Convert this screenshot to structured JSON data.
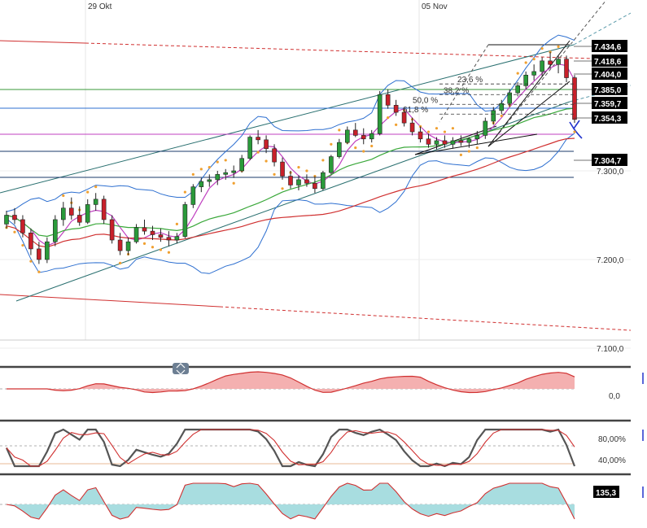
{
  "chart_data": {
    "type": "candlestick",
    "x_labels": [
      "29 Okt",
      "05 Nov"
    ],
    "price_axis": {
      "ticks": [
        "7.300,0",
        "7.200,0",
        "7.100,0"
      ],
      "range": [
        7085,
        7470
      ]
    },
    "price_tags": [
      {
        "label": "7.434,6",
        "value": 7434.6,
        "style": "black"
      },
      {
        "label": "7.418,6",
        "value": 7418.6,
        "style": "black"
      },
      {
        "label": "7.404,0",
        "value": 7404.0,
        "style": "black"
      },
      {
        "label": "7.385,0",
        "value": 7385.0,
        "style": "black"
      },
      {
        "label": "7.359,7",
        "value": 7359.7,
        "style": "black"
      },
      {
        "label": "7.354,3",
        "value": 7354.3,
        "style": "black"
      },
      {
        "label": "7.304,7",
        "value": 7304.7,
        "style": "black"
      }
    ],
    "fibonacci_levels": [
      {
        "label": "23,6 %",
        "value": 7398
      },
      {
        "label": "38,2 %",
        "value": 7386
      },
      {
        "label": "50,0 %",
        "value": 7375
      },
      {
        "label": "61,8 %",
        "value": 7364
      }
    ],
    "candles_approx": [
      [
        7240,
        7255,
        7235,
        7250
      ],
      [
        7250,
        7258,
        7240,
        7245
      ],
      [
        7245,
        7250,
        7225,
        7230
      ],
      [
        7230,
        7235,
        7205,
        7212
      ],
      [
        7212,
        7220,
        7195,
        7200
      ],
      [
        7200,
        7225,
        7196,
        7220
      ],
      [
        7220,
        7250,
        7215,
        7245
      ],
      [
        7245,
        7265,
        7238,
        7258
      ],
      [
        7258,
        7270,
        7245,
        7250
      ],
      [
        7250,
        7260,
        7238,
        7242
      ],
      [
        7242,
        7268,
        7240,
        7262
      ],
      [
        7262,
        7275,
        7255,
        7268
      ],
      [
        7268,
        7272,
        7240,
        7245
      ],
      [
        7245,
        7250,
        7218,
        7222
      ],
      [
        7222,
        7230,
        7205,
        7210
      ],
      [
        7210,
        7225,
        7205,
        7220
      ],
      [
        7220,
        7240,
        7218,
        7236
      ],
      [
        7236,
        7245,
        7228,
        7232
      ],
      [
        7232,
        7238,
        7222,
        7228
      ],
      [
        7228,
        7235,
        7220,
        7225
      ],
      [
        7225,
        7232,
        7215,
        7222
      ],
      [
        7222,
        7230,
        7218,
        7226
      ],
      [
        7226,
        7265,
        7224,
        7262
      ],
      [
        7262,
        7285,
        7258,
        7282
      ],
      [
        7282,
        7292,
        7276,
        7288
      ],
      [
        7288,
        7296,
        7282,
        7290
      ],
      [
        7290,
        7300,
        7284,
        7296
      ],
      [
        7296,
        7302,
        7290,
        7298
      ],
      [
        7298,
        7306,
        7292,
        7300
      ],
      [
        7300,
        7318,
        7298,
        7314
      ],
      [
        7314,
        7340,
        7312,
        7338
      ],
      [
        7338,
        7346,
        7330,
        7335
      ],
      [
        7335,
        7340,
        7320,
        7325
      ],
      [
        7325,
        7330,
        7305,
        7310
      ],
      [
        7310,
        7315,
        7290,
        7294
      ],
      [
        7294,
        7300,
        7280,
        7284
      ],
      [
        7284,
        7295,
        7278,
        7290
      ],
      [
        7290,
        7296,
        7282,
        7286
      ],
      [
        7286,
        7294,
        7275,
        7280
      ],
      [
        7280,
        7300,
        7278,
        7298
      ],
      [
        7298,
        7318,
        7296,
        7316
      ],
      [
        7316,
        7336,
        7314,
        7332
      ],
      [
        7332,
        7350,
        7330,
        7346
      ],
      [
        7346,
        7354,
        7338,
        7340
      ],
      [
        7340,
        7348,
        7330,
        7336
      ],
      [
        7336,
        7346,
        7332,
        7342
      ],
      [
        7342,
        7390,
        7340,
        7386
      ],
      [
        7386,
        7392,
        7370,
        7374
      ],
      [
        7374,
        7380,
        7362,
        7366
      ],
      [
        7366,
        7372,
        7350,
        7354
      ],
      [
        7354,
        7360,
        7340,
        7344
      ],
      [
        7344,
        7350,
        7332,
        7336
      ],
      [
        7336,
        7342,
        7326,
        7330
      ],
      [
        7330,
        7338,
        7324,
        7334
      ],
      [
        7334,
        7340,
        7326,
        7330
      ],
      [
        7330,
        7338,
        7325,
        7334
      ],
      [
        7334,
        7340,
        7328,
        7332
      ],
      [
        7332,
        7338,
        7326,
        7336
      ],
      [
        7336,
        7345,
        7330,
        7340
      ],
      [
        7340,
        7360,
        7336,
        7356
      ],
      [
        7356,
        7372,
        7352,
        7368
      ],
      [
        7368,
        7380,
        7364,
        7376
      ],
      [
        7376,
        7392,
        7372,
        7388
      ],
      [
        7388,
        7400,
        7384,
        7396
      ],
      [
        7396,
        7412,
        7392,
        7408
      ],
      [
        7408,
        7420,
        7402,
        7412
      ],
      [
        7412,
        7428,
        7406,
        7424
      ],
      [
        7424,
        7434,
        7416,
        7420
      ],
      [
        7420,
        7430,
        7410,
        7426
      ],
      [
        7426,
        7430,
        7400,
        7405
      ],
      [
        7405,
        7408,
        7354,
        7358
      ]
    ],
    "indicators": [
      {
        "panel": "macd",
        "tick": "0,0"
      },
      {
        "panel": "stochastic",
        "ticks": [
          "80,00%",
          "40,00%"
        ]
      },
      {
        "panel": "cci",
        "tag": "135,3"
      }
    ],
    "colors": {
      "up": "#2a9a3a",
      "down": "#c8202a",
      "bollinger": "#2d6fd0",
      "ma_green": "#3aa83a",
      "ma_magenta": "#c040c0",
      "sar": "#f0a030",
      "trend_red": "#d03030",
      "panel_border": "#444444"
    }
  }
}
